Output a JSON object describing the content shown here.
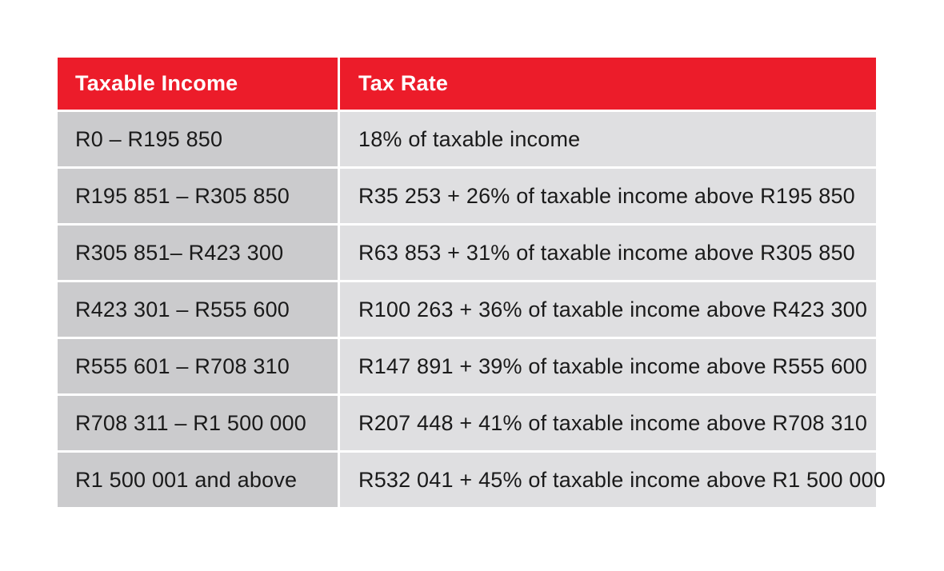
{
  "table": {
    "headers": {
      "income": "Taxable Income",
      "rate": "Tax Rate"
    },
    "rows": [
      {
        "income": "R0 – R195 850",
        "rate": "18% of taxable income"
      },
      {
        "income": "R195 851 – R305 850",
        "rate": "R35 253 + 26% of taxable income above R195 850"
      },
      {
        "income": "R305 851– R423 300",
        "rate": "R63 853 + 31% of taxable income above R305 850"
      },
      {
        "income": "R423 301 – R555 600",
        "rate": "R100 263 + 36% of taxable income above R423 300"
      },
      {
        "income": "R555 601 – R708 310",
        "rate": "R147 891 + 39% of taxable income above R555 600"
      },
      {
        "income": "R708 311 – R1 500 000",
        "rate": "R207 448 + 41% of taxable income above R708 310"
      },
      {
        "income": "R1 500 001 and above",
        "rate": "R532 041 + 45% of taxable income above R1 500 000"
      }
    ]
  },
  "colors": {
    "header_background": "#ec1c2a",
    "header_text": "#ffffff",
    "income_column_background": "#cbcbcd",
    "rate_column_background": "#dfdfe1",
    "body_text": "#1a1a1a"
  }
}
